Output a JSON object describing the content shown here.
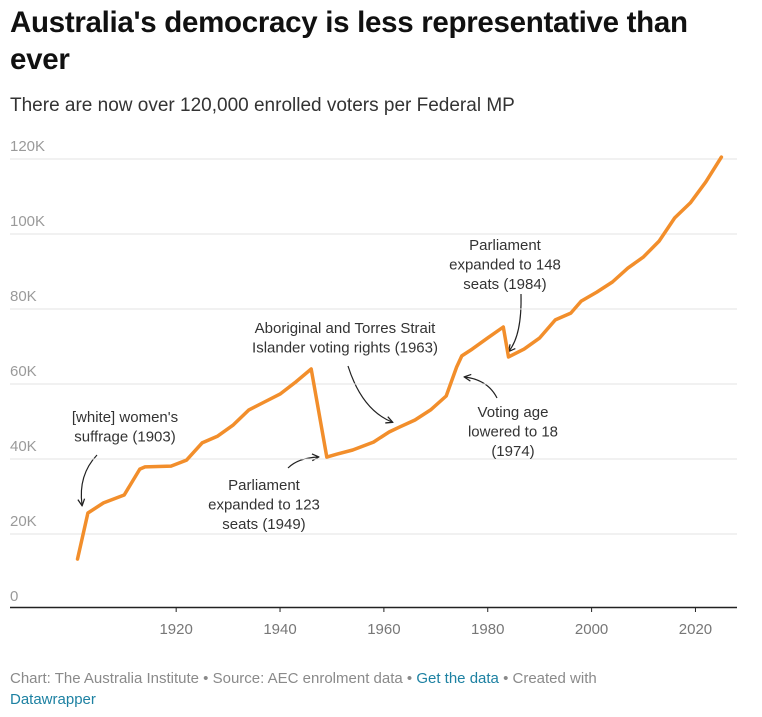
{
  "chart_data": {
    "type": "line",
    "title": "Australia's democracy is less representative than ever",
    "subtitle": "There are now over 120,000 enrolled voters per Federal MP",
    "x": [
      1901,
      1903,
      1906,
      1910,
      1913,
      1914,
      1919,
      1922,
      1925,
      1928,
      1931,
      1934,
      1937,
      1940,
      1943,
      1946,
      1949,
      1951,
      1954,
      1958,
      1961,
      1963,
      1966,
      1969,
      1972,
      1974,
      1975,
      1977,
      1980,
      1983,
      1984,
      1987,
      1990,
      1993,
      1996,
      1998,
      2001,
      2004,
      2007,
      2010,
      2013,
      2016,
      2019,
      2022,
      2025
    ],
    "series": [
      {
        "name": "Enrolled voters per Federal MP",
        "color": "#f28e2b",
        "values": [
          13300,
          25600,
          28300,
          30400,
          37300,
          37900,
          38100,
          39700,
          44300,
          46100,
          49100,
          53100,
          55200,
          57300,
          60500,
          64000,
          40500,
          41300,
          42400,
          44500,
          47200,
          48500,
          50400,
          53100,
          56800,
          64500,
          67500,
          69300,
          72300,
          75200,
          67200,
          69300,
          72300,
          77100,
          78900,
          82100,
          84500,
          87200,
          90900,
          93900,
          98100,
          104300,
          108300,
          113900,
          120500
        ]
      }
    ],
    "xlim": [
      1888,
      2028
    ],
    "xticks": [
      1920,
      1940,
      1960,
      1980,
      2000,
      2020
    ],
    "ylim": [
      0,
      125000
    ],
    "yticks": [
      0,
      {
        "value": 20000,
        "label": "20K"
      },
      {
        "value": 40000,
        "label": "40K"
      },
      {
        "value": 60000,
        "label": "60K"
      },
      {
        "value": 80000,
        "label": "80K"
      },
      {
        "value": 100000,
        "label": "100K"
      },
      {
        "value": 120000,
        "label": "120K"
      }
    ],
    "grid": true,
    "annotations": [
      {
        "lines": [
          "[white] women's",
          "suffrage (1903)"
        ]
      },
      {
        "lines": [
          "Parliament",
          "expanded to 123",
          "seats (1949)"
        ]
      },
      {
        "lines": [
          "Aboriginal and Torres Strait",
          "Islander voting rights (1963)"
        ]
      },
      {
        "lines": [
          "Voting age",
          "lowered to 18",
          "(1974)"
        ]
      },
      {
        "lines": [
          "Parliament",
          "expanded to 148",
          "seats (1984)"
        ]
      }
    ],
    "footer": {
      "credit": "Chart: The Australia Institute",
      "separator": "•",
      "source": "Source: AEC enrolment data",
      "get_data": "Get the data",
      "created_with": "Created with",
      "tool": "Datawrapper"
    }
  }
}
